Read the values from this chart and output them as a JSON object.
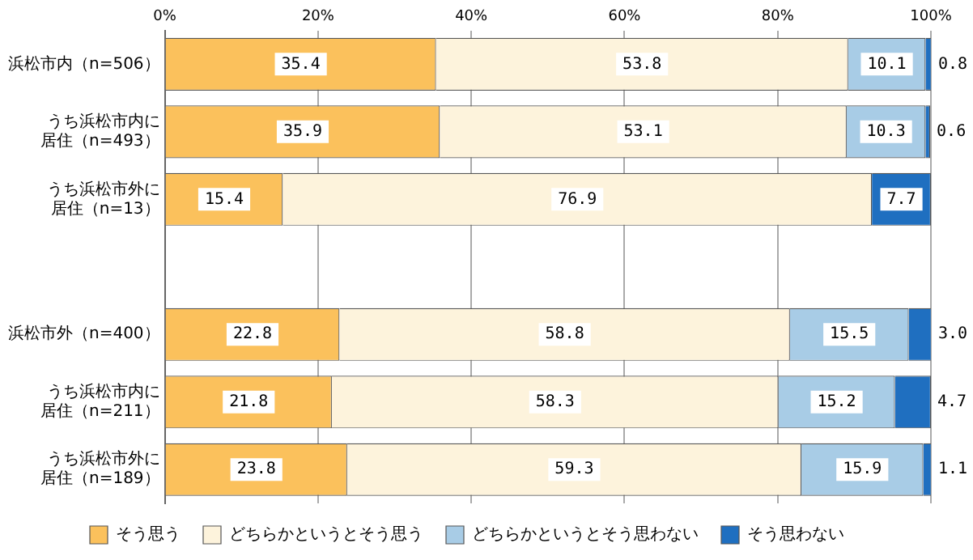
{
  "chart_data": {
    "type": "bar",
    "orientation": "horizontal",
    "stacked": true,
    "categories": [
      "浜松市内（n=506）",
      "うち浜松市内に居住（n=493）",
      "うち浜松市外に居住（n=13）",
      null,
      "浜松市外（n=400）",
      "うち浜松市内に居住（n=211）",
      "うち浜松市外に居住（n=189）"
    ],
    "series": [
      {
        "name": "そう思う",
        "color": "#fbc15c",
        "values": [
          35.4,
          35.9,
          15.4,
          null,
          22.8,
          21.8,
          23.8
        ],
        "value_labels": [
          "35.4",
          "35.9",
          "15.4",
          null,
          "22.8",
          "21.8",
          "23.8"
        ]
      },
      {
        "name": "どちらかというとそう思う",
        "color": "#fdf3dc",
        "values": [
          53.8,
          53.1,
          76.9,
          null,
          58.8,
          58.3,
          59.3
        ],
        "value_labels": [
          "53.8",
          "53.1",
          "76.9",
          null,
          "58.8",
          "58.3",
          "59.3"
        ]
      },
      {
        "name": "どちらかというとそう思わない",
        "color": "#a8cce6",
        "values": [
          10.1,
          10.3,
          null,
          null,
          15.5,
          15.2,
          15.9
        ],
        "value_labels": [
          "10.1",
          "10.3",
          null,
          null,
          "15.5",
          "15.2",
          "15.9"
        ]
      },
      {
        "name": "そう思わない",
        "color": "#1f6fc0",
        "values": [
          0.8,
          0.6,
          7.7,
          null,
          3.0,
          4.7,
          1.1
        ],
        "value_labels": [
          "0.8",
          "0.6",
          "7.7",
          null,
          "3.0",
          "4.7",
          "1.1"
        ]
      }
    ],
    "xlim": [
      0,
      100
    ],
    "xticks": [
      {
        "value": 0,
        "label": "0%"
      },
      {
        "value": 20,
        "label": "20%"
      },
      {
        "value": 40,
        "label": "40%"
      },
      {
        "value": 60,
        "label": "60%"
      },
      {
        "value": 80,
        "label": "80%"
      },
      {
        "value": 100,
        "label": "100%"
      }
    ],
    "grid": "x",
    "legend": "bottom"
  }
}
